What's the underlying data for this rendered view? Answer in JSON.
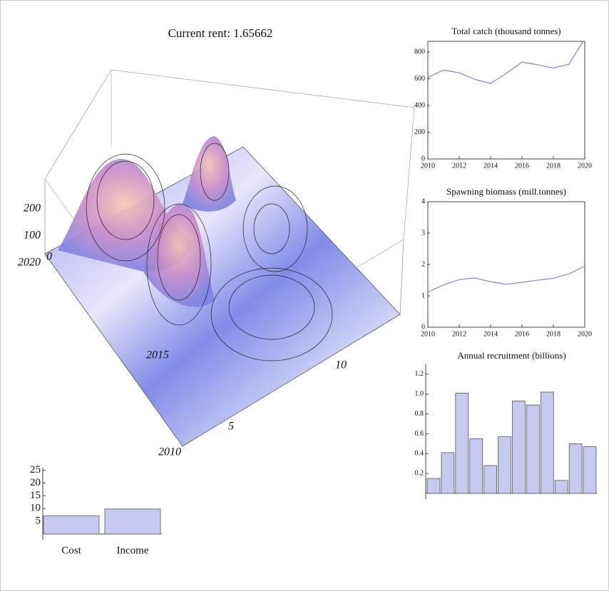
{
  "header": {
    "title": "Current rent: 1.65662"
  },
  "chart_data": [
    {
      "type": "surface",
      "xticks": [
        5,
        10
      ],
      "yticks": [
        2010,
        2015,
        2020
      ],
      "zticks": [
        0,
        100,
        200
      ]
    },
    {
      "type": "line",
      "title": "Total catch (thousand tonnes)",
      "x": [
        2010,
        2011,
        2012,
        2013,
        2014,
        2015,
        2016,
        2017,
        2018,
        2019,
        2020
      ],
      "values": [
        610,
        665,
        645,
        595,
        565,
        640,
        725,
        705,
        680,
        710,
        900
      ],
      "color": "#8c8cd2",
      "xlim": [
        2010,
        2020
      ],
      "xticks": [
        2010,
        2012,
        2014,
        2016,
        2018,
        2020
      ],
      "ylim": [
        0,
        880
      ],
      "yticks": [
        0,
        200,
        400,
        600,
        800
      ]
    },
    {
      "type": "line",
      "title": "Spawning biomass (mill.tonnes)",
      "x": [
        2010,
        2011,
        2012,
        2013,
        2014,
        2015,
        2016,
        2017,
        2018,
        2019,
        2020
      ],
      "values": [
        1.12,
        1.35,
        1.52,
        1.57,
        1.45,
        1.37,
        1.43,
        1.5,
        1.56,
        1.7,
        1.95
      ],
      "color": "#8c8cd2",
      "xlim": [
        2010,
        2020
      ],
      "xticks": [
        2010,
        2012,
        2014,
        2016,
        2018,
        2020
      ],
      "ylim": [
        0,
        4
      ],
      "yticks": [
        0,
        1,
        2,
        3,
        4
      ]
    },
    {
      "type": "bar",
      "title": "Annual recruitment (billions)",
      "values": [
        0.15,
        0.41,
        1.01,
        0.55,
        0.28,
        0.57,
        0.93,
        0.89,
        1.02,
        0.13,
        0.5,
        0.47
      ],
      "color": "#c6caf1",
      "ylim": [
        0,
        1.3
      ],
      "yticks": [
        0.2,
        0.4,
        0.6,
        0.8,
        {
          "value": 1,
          "label": "1.0"
        },
        1.2
      ]
    },
    {
      "type": "bar",
      "categories": [
        "Cost",
        "Income"
      ],
      "values": [
        7.1,
        9.8
      ],
      "color": "#c6caf1",
      "ylim": [
        0,
        26
      ],
      "yticks": [
        5,
        10,
        15,
        20,
        25
      ]
    }
  ]
}
